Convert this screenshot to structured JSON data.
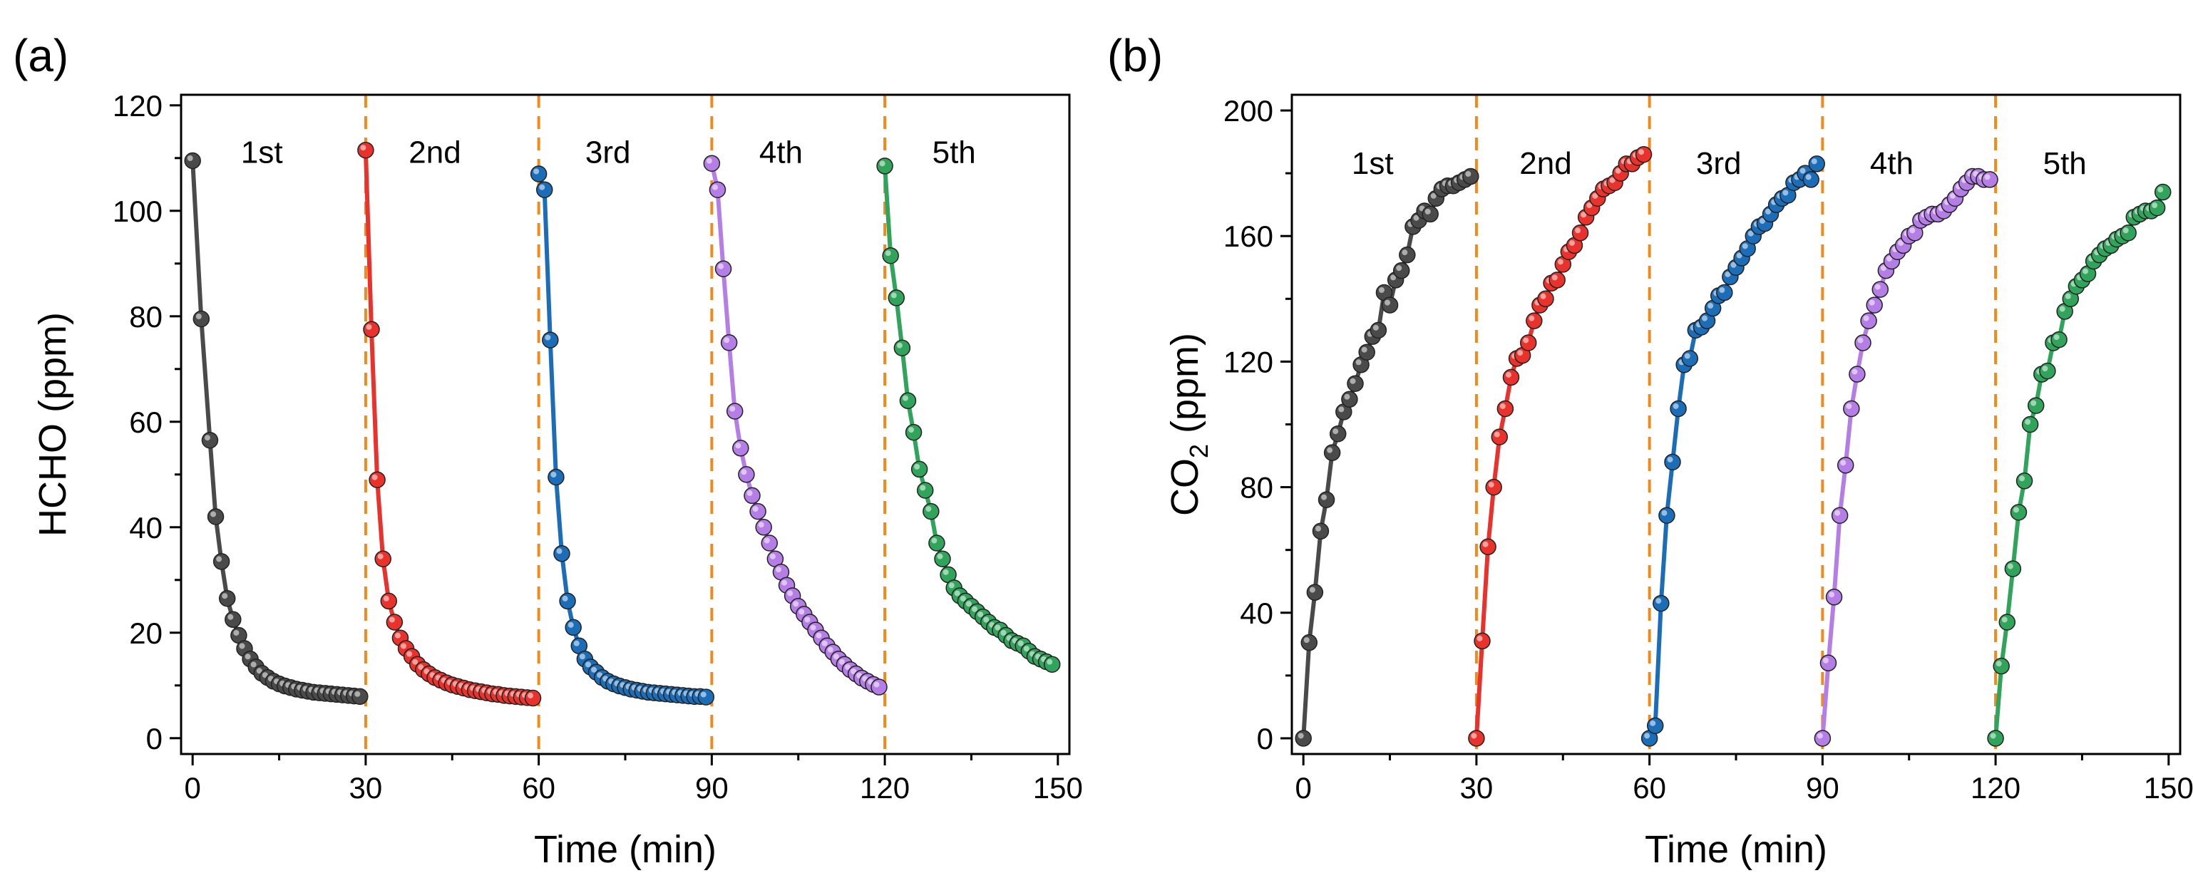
{
  "chart_data": [
    {
      "type": "line",
      "panel_label": "(a)",
      "xlabel": "Time (min)",
      "ylabel": "HCHO (ppm)",
      "xlim": [
        -2,
        152
      ],
      "ylim": [
        -3,
        122
      ],
      "xticks": [
        0,
        30,
        60,
        90,
        120,
        150
      ],
      "yticks": [
        0,
        20,
        40,
        60,
        80,
        100,
        120
      ],
      "dividers": [
        30,
        60,
        90,
        120
      ],
      "cycle_labels": [
        {
          "text": "1st",
          "x": 12,
          "y": 111
        },
        {
          "text": "2nd",
          "x": 42,
          "y": 111
        },
        {
          "text": "3rd",
          "x": 72,
          "y": 111
        },
        {
          "text": "4th",
          "x": 102,
          "y": 111
        },
        {
          "text": "5th",
          "x": 132,
          "y": 111
        }
      ],
      "series": [
        {
          "name": "1st",
          "color": "#4a4a4a",
          "x": [
            0,
            1.5,
            3,
            4,
            5,
            6,
            7,
            8,
            9,
            10,
            11,
            12,
            13,
            14,
            15,
            16,
            17,
            18,
            19,
            20,
            21,
            22,
            23,
            24,
            25,
            26,
            27,
            28,
            29
          ],
          "values": [
            109.5,
            79.5,
            56.5,
            42,
            33.5,
            26.5,
            22.5,
            19.5,
            17,
            15,
            13.5,
            12.3,
            11.5,
            10.8,
            10.3,
            9.9,
            9.6,
            9.3,
            9.1,
            8.9,
            8.7,
            8.6,
            8.5,
            8.4,
            8.3,
            8.2,
            8.1,
            8.0,
            7.9
          ]
        },
        {
          "name": "2nd",
          "color": "#e8322b",
          "x": [
            30,
            31,
            32,
            33,
            34,
            35,
            36,
            37,
            38,
            39,
            40,
            41,
            42,
            43,
            44,
            45,
            46,
            47,
            48,
            49,
            50,
            51,
            52,
            53,
            54,
            55,
            56,
            57,
            58,
            59
          ],
          "values": [
            111.5,
            77.5,
            49,
            34,
            26,
            22,
            19,
            17,
            15.5,
            14,
            13,
            12.2,
            11.5,
            11,
            10.5,
            10.1,
            9.8,
            9.5,
            9.2,
            9.0,
            8.8,
            8.6,
            8.4,
            8.3,
            8.1,
            8.0,
            7.9,
            7.8,
            7.7,
            7.6
          ]
        },
        {
          "name": "3rd",
          "color": "#1c6db7",
          "x": [
            60,
            61,
            62,
            63,
            64,
            65,
            66,
            67,
            68,
            69,
            70,
            71,
            72,
            73,
            74,
            75,
            76,
            77,
            78,
            79,
            80,
            81,
            82,
            83,
            84,
            85,
            86,
            87,
            88,
            89
          ],
          "values": [
            107,
            104,
            75.5,
            49.5,
            35,
            26,
            21,
            17.5,
            15,
            13.5,
            12.5,
            11.5,
            10.8,
            10.3,
            9.9,
            9.6,
            9.3,
            9.1,
            8.9,
            8.7,
            8.6,
            8.5,
            8.4,
            8.3,
            8.2,
            8.1,
            8.0,
            7.9,
            7.9,
            7.8
          ]
        },
        {
          "name": "4th",
          "color": "#b57ee6",
          "x": [
            90,
            91,
            92,
            93,
            94,
            95,
            96,
            97,
            98,
            99,
            100,
            101,
            102,
            103,
            104,
            105,
            106,
            107,
            108,
            109,
            110,
            111,
            112,
            113,
            114,
            115,
            116,
            117,
            118,
            119
          ],
          "values": [
            109,
            104,
            89,
            75,
            62,
            55,
            50,
            46,
            43,
            40,
            37,
            34,
            31.5,
            29,
            27,
            25,
            23.5,
            22,
            20.5,
            19,
            17.5,
            16.3,
            15,
            14,
            13,
            12.2,
            11.4,
            10.8,
            10.2,
            9.7
          ]
        },
        {
          "name": "5th",
          "color": "#30a45a",
          "x": [
            120,
            121,
            122,
            123,
            124,
            125,
            126,
            127,
            128,
            129,
            130,
            131,
            132,
            133,
            134,
            135,
            136,
            137,
            138,
            139,
            140,
            141,
            142,
            143,
            144,
            145,
            146,
            147,
            148,
            149
          ],
          "values": [
            108.5,
            91.5,
            83.5,
            74,
            64,
            58,
            51,
            47,
            43,
            37,
            34,
            31,
            28.5,
            27,
            26,
            25,
            24,
            23,
            22,
            21,
            20.5,
            19.5,
            18.5,
            18,
            17.5,
            16.5,
            15.5,
            15,
            14.5,
            14
          ]
        }
      ]
    },
    {
      "type": "line",
      "panel_label": "(b)",
      "xlabel": "Time (min)",
      "ylabel_main": "CO",
      "ylabel_sub": "2",
      "ylabel_rest": " (ppm)",
      "xlim": [
        -2,
        152
      ],
      "ylim": [
        -5,
        205
      ],
      "xticks": [
        0,
        30,
        60,
        90,
        120,
        150
      ],
      "yticks": [
        0,
        40,
        80,
        120,
        160,
        200
      ],
      "dividers": [
        30,
        60,
        90,
        120
      ],
      "cycle_labels": [
        {
          "text": "1st",
          "x": 12,
          "y": 183
        },
        {
          "text": "2nd",
          "x": 42,
          "y": 183
        },
        {
          "text": "3rd",
          "x": 72,
          "y": 183
        },
        {
          "text": "4th",
          "x": 102,
          "y": 183
        },
        {
          "text": "5th",
          "x": 132,
          "y": 183
        }
      ],
      "series": [
        {
          "name": "1st",
          "color": "#4a4a4a",
          "x": [
            0,
            1,
            2,
            3,
            4,
            5,
            6,
            7,
            8,
            9,
            10,
            11,
            12,
            13,
            14,
            15,
            16,
            17,
            18,
            19,
            20,
            21,
            22,
            23,
            24,
            25,
            26,
            27,
            28,
            29
          ],
          "values": [
            0,
            30.5,
            46.5,
            66,
            76,
            91,
            97,
            104,
            108,
            113,
            119,
            123,
            128,
            130,
            142,
            138,
            146,
            149,
            154,
            163,
            165,
            168,
            167,
            172,
            175,
            176,
            176,
            177,
            178,
            179
          ]
        },
        {
          "name": "2nd",
          "color": "#e8322b",
          "x": [
            30,
            31,
            32,
            33,
            34,
            35,
            36,
            37,
            38,
            39,
            40,
            41,
            42,
            43,
            44,
            45,
            46,
            47,
            48,
            49,
            50,
            51,
            52,
            53,
            54,
            55,
            56,
            57,
            58,
            59
          ],
          "values": [
            0,
            31,
            61,
            80,
            96,
            105,
            115,
            121,
            122,
            126,
            133,
            138,
            140,
            145,
            146,
            151,
            155,
            157,
            161,
            166,
            169,
            172,
            175,
            176,
            177,
            180,
            183,
            183,
            185,
            186
          ]
        },
        {
          "name": "3rd",
          "color": "#1c6db7",
          "x": [
            60,
            61,
            62,
            63,
            64,
            65,
            66,
            67,
            68,
            69,
            70,
            71,
            72,
            73,
            74,
            75,
            76,
            77,
            78,
            79,
            80,
            81,
            82,
            83,
            84,
            85,
            86,
            87,
            88,
            89
          ],
          "values": [
            0,
            4,
            43,
            71,
            88,
            105,
            119,
            121,
            130,
            131,
            133,
            137,
            141,
            142,
            147,
            150,
            153,
            156,
            160,
            163,
            164,
            167,
            170,
            172,
            173,
            177,
            178,
            180,
            178,
            183
          ]
        },
        {
          "name": "4th",
          "color": "#b57ee6",
          "x": [
            90,
            91,
            92,
            93,
            94,
            95,
            96,
            97,
            98,
            99,
            100,
            101,
            102,
            103,
            104,
            105,
            106,
            107,
            108,
            109,
            110,
            111,
            112,
            113,
            114,
            115,
            116,
            117,
            118,
            119
          ],
          "values": [
            0,
            24,
            45,
            71,
            87,
            105,
            116,
            126,
            133,
            138,
            143,
            149,
            152,
            155,
            157,
            160,
            161,
            165,
            166,
            167,
            167,
            168,
            170,
            172,
            175,
            177,
            179,
            179,
            178,
            178
          ]
        },
        {
          "name": "5th",
          "color": "#30a45a",
          "x": [
            120,
            121,
            122,
            123,
            124,
            125,
            126,
            127,
            128,
            129,
            130,
            131,
            132,
            133,
            134,
            135,
            136,
            137,
            138,
            139,
            140,
            141,
            142,
            143,
            144,
            145,
            146,
            147,
            148,
            149
          ],
          "values": [
            0,
            23,
            37,
            54,
            72,
            82,
            100,
            106,
            116,
            117,
            126,
            127,
            136,
            140,
            144,
            146,
            148,
            152,
            154,
            156,
            157,
            159,
            160,
            161,
            166,
            167,
            168,
            168,
            169,
            174
          ]
        }
      ]
    }
  ]
}
